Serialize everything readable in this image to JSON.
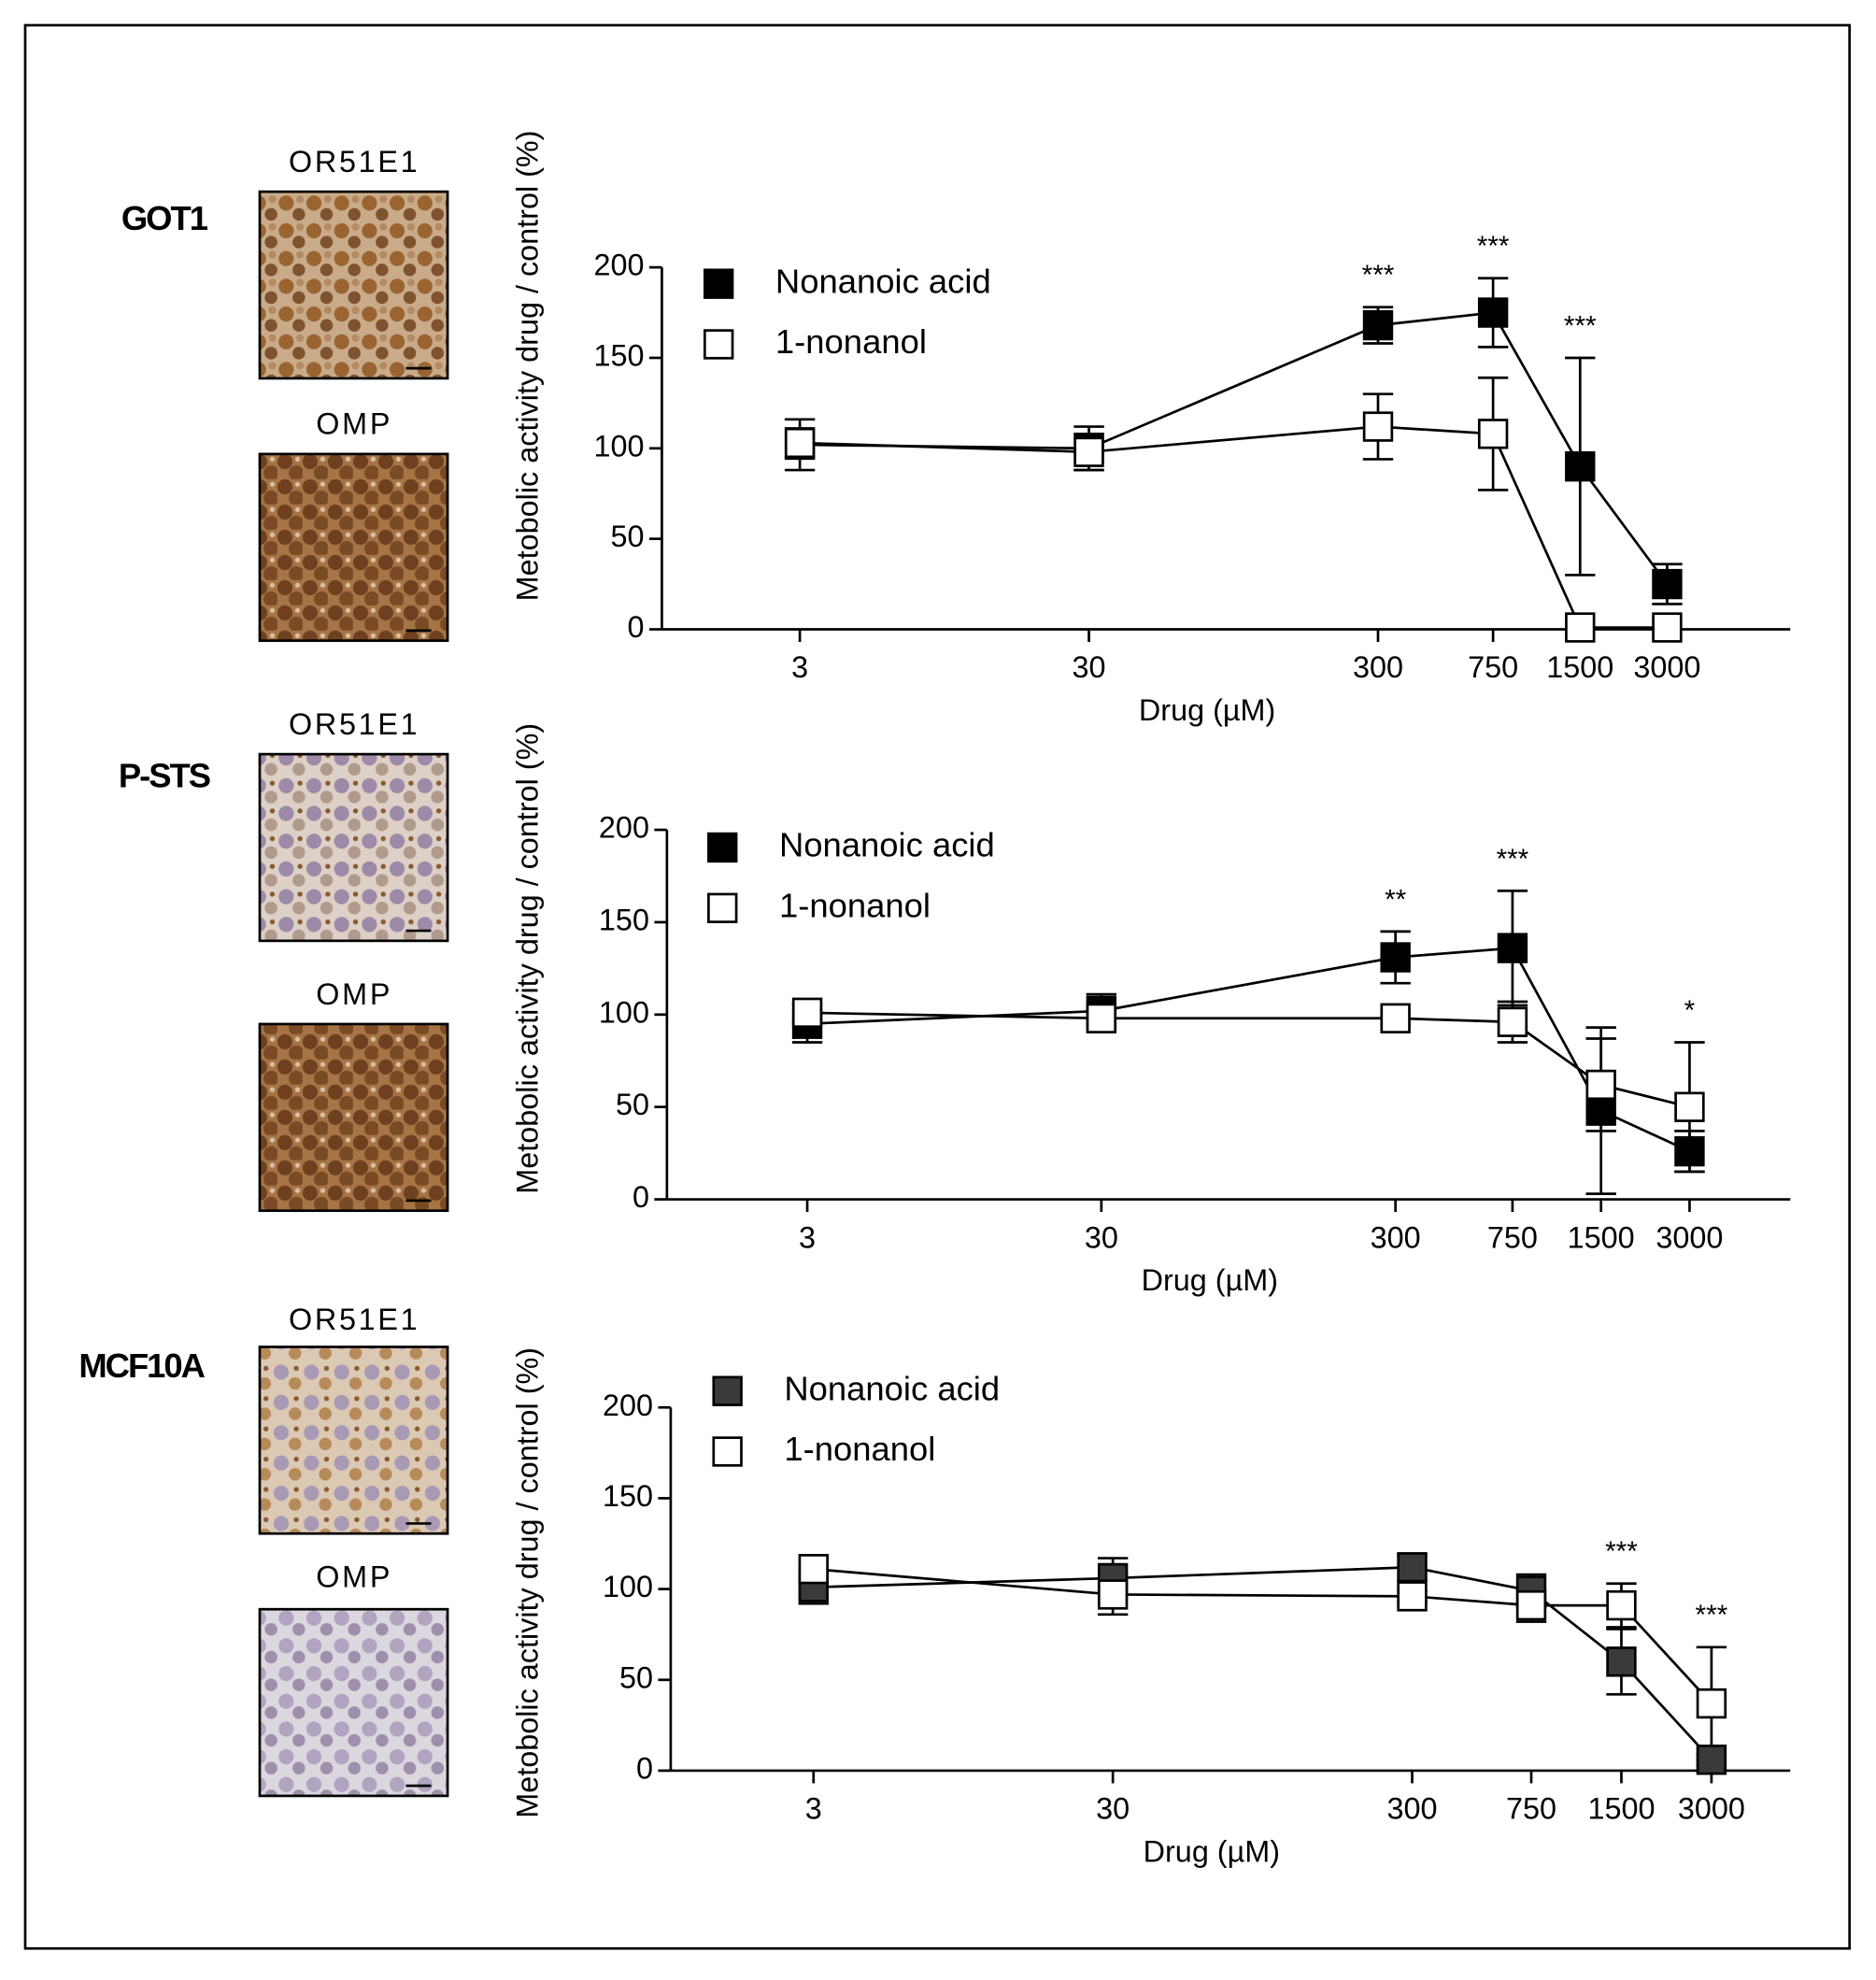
{
  "panels": [
    {
      "label": "GOT1",
      "stains": [
        "OR51E1",
        "OMP"
      ]
    },
    {
      "label": "P-STS",
      "stains": [
        "OR51E1",
        "OMP"
      ]
    },
    {
      "label": "MCF10A",
      "stains": [
        "OR51E1",
        "OMP"
      ]
    }
  ],
  "chart_data": [
    {
      "type": "line",
      "y_label": "Metobolic activity drug / control (%)",
      "x_label": "Drug (µM)",
      "xscale": "log",
      "xlim": [
        1,
        8000
      ],
      "xticks": [
        3,
        30,
        300,
        750,
        1500,
        3000
      ],
      "ylim": [
        0,
        200
      ],
      "yticks": [
        0,
        50,
        100,
        150,
        200
      ],
      "legend": "upper left",
      "x": [
        3,
        30,
        300,
        750,
        1500,
        3000
      ],
      "series": [
        {
          "name": "Nonanoic acid",
          "color": "#000000",
          "values": [
            102,
            100,
            168,
            175,
            90,
            25
          ],
          "errors": [
            14,
            12,
            10,
            19,
            60,
            11
          ]
        },
        {
          "name": "1-nonanol",
          "color": "#ffffff",
          "values": [
            103,
            98,
            112,
            108,
            1,
            1
          ],
          "errors": [
            8,
            10,
            18,
            31,
            0,
            0
          ]
        }
      ],
      "annotations": [
        {
          "x": 300,
          "text": "***"
        },
        {
          "x": 750,
          "text": "***"
        },
        {
          "x": 1500,
          "text": "***"
        }
      ]
    },
    {
      "type": "line",
      "y_label": "Metobolic activity drug / control (%)",
      "x_label": "Drug (µM)",
      "xscale": "log",
      "xlim": [
        1,
        6600
      ],
      "xticks": [
        3,
        30,
        300,
        750,
        1500,
        3000
      ],
      "ylim": [
        0,
        200
      ],
      "yticks": [
        0,
        50,
        100,
        150,
        200
      ],
      "legend": "upper left",
      "x": [
        3,
        30,
        300,
        750,
        1500,
        3000
      ],
      "series": [
        {
          "name": "Nonanoic acid",
          "color": "#000000",
          "values": [
            95,
            102,
            131,
            136,
            48,
            26
          ],
          "errors": [
            10,
            9,
            14,
            31,
            45,
            11
          ]
        },
        {
          "name": "1-nonanol",
          "color": "#ffffff",
          "values": [
            101,
            98,
            98,
            96,
            62,
            50
          ],
          "errors": [
            5,
            5,
            3,
            11,
            25,
            35
          ]
        }
      ],
      "annotations": [
        {
          "x": 300,
          "text": "**"
        },
        {
          "x": 750,
          "text": "***"
        },
        {
          "x": 3000,
          "text": "*"
        }
      ]
    },
    {
      "type": "line",
      "y_label": "Metobolic activity drug / control (%)",
      "x_label": "Drug (µM)",
      "xscale": "log",
      "xlim": [
        1,
        5500
      ],
      "xticks": [
        3,
        30,
        300,
        750,
        1500,
        3000
      ],
      "ylim": [
        0,
        200
      ],
      "yticks": [
        0,
        50,
        100,
        150,
        200
      ],
      "legend": "upper left",
      "x": [
        3,
        30,
        300,
        750,
        1500,
        3000
      ],
      "series": [
        {
          "name": "Nonanoic acid",
          "color": "#3a3a3a",
          "values": [
            101,
            106,
            112,
            99,
            60,
            6
          ],
          "errors": [
            9,
            11,
            7,
            9,
            18,
            3
          ]
        },
        {
          "name": "1-nonanol",
          "color": "#ffffff",
          "values": [
            111,
            97,
            96,
            91,
            91,
            37
          ],
          "errors": [
            5,
            11,
            3,
            9,
            12,
            31
          ]
        }
      ],
      "annotations": [
        {
          "x": 1500,
          "text": "***"
        },
        {
          "x": 3000,
          "text": "***"
        }
      ]
    }
  ]
}
